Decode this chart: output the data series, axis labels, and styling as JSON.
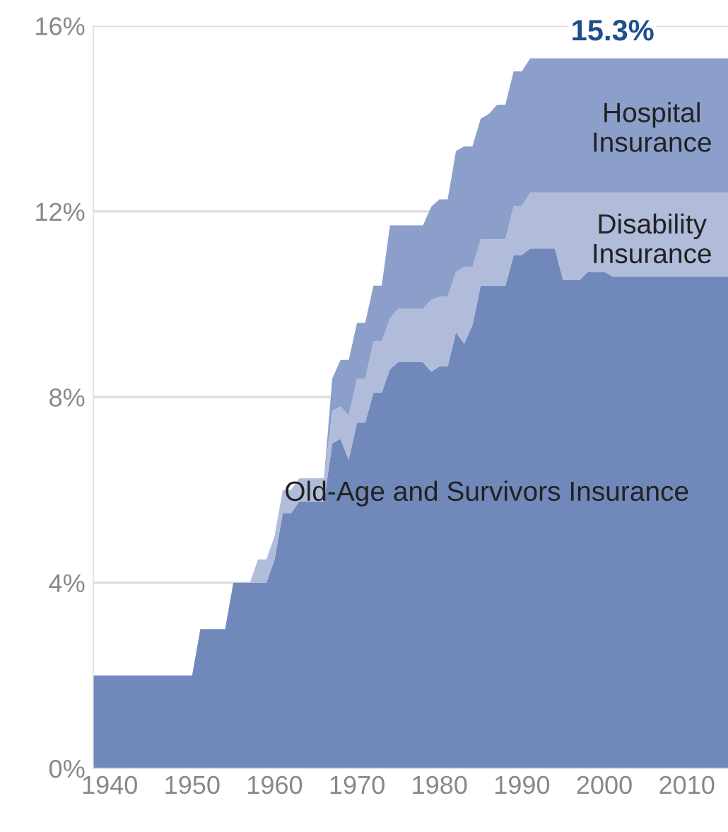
{
  "chart_data": {
    "type": "area",
    "stacked": true,
    "x": [
      1938,
      1939,
      1940,
      1941,
      1942,
      1943,
      1944,
      1945,
      1946,
      1947,
      1948,
      1949,
      1950,
      1951,
      1952,
      1953,
      1954,
      1955,
      1956,
      1957,
      1958,
      1959,
      1960,
      1961,
      1962,
      1963,
      1964,
      1965,
      1966,
      1967,
      1968,
      1969,
      1970,
      1971,
      1972,
      1973,
      1974,
      1975,
      1976,
      1977,
      1978,
      1979,
      1980,
      1981,
      1982,
      1983,
      1984,
      1985,
      1986,
      1987,
      1988,
      1989,
      1990,
      1991,
      1992,
      1993,
      1994,
      1995,
      1996,
      1997,
      1998,
      1999,
      2000,
      2001,
      2002,
      2003,
      2004,
      2005,
      2006,
      2007,
      2008,
      2009,
      2010,
      2011,
      2012,
      2013,
      2014,
      2015
    ],
    "series": [
      {
        "name": "Old-Age and Survivors Insurance",
        "color": "#7189ba",
        "values": [
          2,
          2,
          2,
          2,
          2,
          2,
          2,
          2,
          2,
          2,
          2,
          2,
          2,
          3,
          3,
          3,
          3,
          4,
          4,
          4,
          4,
          4,
          4.5,
          5.5,
          5.5,
          5.75,
          5.75,
          5.75,
          5.75,
          7.0,
          7.1,
          6.65,
          7.45,
          7.45,
          8.1,
          8.1,
          8.6,
          8.75,
          8.75,
          8.75,
          8.75,
          8.55,
          8.66,
          8.66,
          9.4,
          9.15,
          9.55,
          10.4,
          10.4,
          10.4,
          10.4,
          11.06,
          11.06,
          11.2,
          11.2,
          11.2,
          11.2,
          10.52,
          10.52,
          10.52,
          10.7,
          10.7,
          10.7,
          10.6,
          10.6,
          10.6,
          10.6,
          10.6,
          10.6,
          10.6,
          10.6,
          10.6,
          10.6,
          10.6,
          10.6,
          10.6,
          10.6,
          10.6
        ]
      },
      {
        "name": "Disability Insurance",
        "color": "#b0bcda",
        "values": [
          0,
          0,
          0,
          0,
          0,
          0,
          0,
          0,
          0,
          0,
          0,
          0,
          0,
          0,
          0,
          0,
          0,
          0,
          0,
          0,
          0.5,
          0.5,
          0.5,
          0.5,
          0.5,
          0.5,
          0.5,
          0.5,
          0.5,
          0.7,
          0.7,
          0.95,
          0.95,
          0.95,
          1.1,
          1.1,
          1.1,
          1.15,
          1.15,
          1.15,
          1.15,
          1.55,
          1.5,
          1.5,
          1.3,
          1.65,
          1.25,
          1.0,
          1.0,
          1.0,
          1.0,
          1.06,
          1.06,
          1.2,
          1.2,
          1.2,
          1.2,
          1.88,
          1.88,
          1.88,
          1.7,
          1.7,
          1.7,
          1.8,
          1.8,
          1.8,
          1.8,
          1.8,
          1.8,
          1.8,
          1.8,
          1.8,
          1.8,
          1.8,
          1.8,
          1.8,
          1.8,
          1.8
        ]
      },
      {
        "name": "Hospital Insurance",
        "color": "#8c9fcb",
        "values": [
          0,
          0,
          0,
          0,
          0,
          0,
          0,
          0,
          0,
          0,
          0,
          0,
          0,
          0,
          0,
          0,
          0,
          0,
          0,
          0,
          0,
          0,
          0,
          0,
          0,
          0,
          0,
          0,
          0,
          0.7,
          1.0,
          1.2,
          1.2,
          1.2,
          1.2,
          1.2,
          2.0,
          1.8,
          1.8,
          1.8,
          1.8,
          2.0,
          2.1,
          2.1,
          2.6,
          2.6,
          2.6,
          2.6,
          2.7,
          2.9,
          2.9,
          2.9,
          2.9,
          2.9,
          2.9,
          2.9,
          2.9,
          2.9,
          2.9,
          2.9,
          2.9,
          2.9,
          2.9,
          2.9,
          2.9,
          2.9,
          2.9,
          2.9,
          2.9,
          2.9,
          2.9,
          2.9,
          2.9,
          2.9,
          2.9,
          2.9,
          2.9,
          2.9
        ]
      }
    ],
    "xlim": [
      1938,
      2015
    ],
    "xticks": [
      1940,
      1950,
      1960,
      1970,
      1980,
      1990,
      2000,
      2010
    ],
    "ylim": [
      0,
      16
    ],
    "yticks": [
      {
        "value": 0,
        "label": "0%"
      },
      {
        "value": 4,
        "label": "4%"
      },
      {
        "value": 8,
        "label": "8%"
      },
      {
        "value": 12,
        "label": "12%"
      },
      {
        "value": 16,
        "label": "16%"
      }
    ],
    "grid": "y",
    "legend": false,
    "annotations": [
      {
        "text": "15.3%",
        "x": 2001,
        "y": 15.3
      }
    ]
  }
}
